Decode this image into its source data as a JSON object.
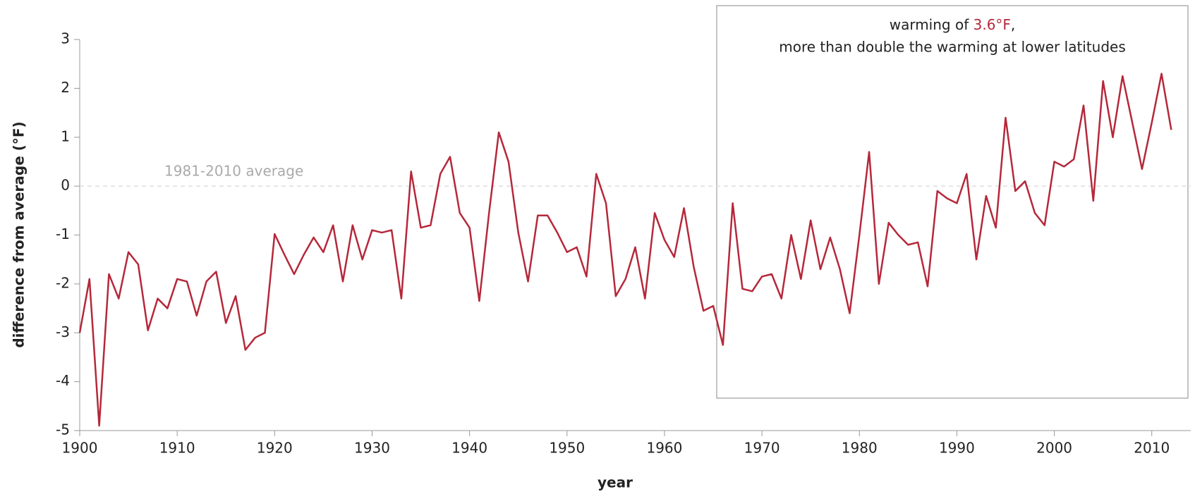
{
  "chart_data": {
    "type": "line",
    "x_label": "year",
    "y_label": "difference from average (°F)",
    "x": [
      1900,
      1901,
      1902,
      1903,
      1904,
      1905,
      1906,
      1907,
      1908,
      1909,
      1910,
      1911,
      1912,
      1913,
      1914,
      1915,
      1916,
      1917,
      1918,
      1919,
      1920,
      1921,
      1922,
      1923,
      1924,
      1925,
      1926,
      1927,
      1928,
      1929,
      1930,
      1931,
      1932,
      1933,
      1934,
      1935,
      1936,
      1937,
      1938,
      1939,
      1940,
      1941,
      1942,
      1943,
      1944,
      1945,
      1946,
      1947,
      1948,
      1949,
      1950,
      1951,
      1952,
      1953,
      1954,
      1955,
      1956,
      1957,
      1958,
      1959,
      1960,
      1961,
      1962,
      1963,
      1964,
      1965,
      1966,
      1967,
      1968,
      1969,
      1970,
      1971,
      1972,
      1973,
      1974,
      1975,
      1976,
      1977,
      1978,
      1979,
      1980,
      1981,
      1982,
      1983,
      1984,
      1985,
      1986,
      1987,
      1988,
      1989,
      1990,
      1991,
      1992,
      1993,
      1994,
      1995,
      1996,
      1997,
      1998,
      1999,
      2000,
      2001,
      2002,
      2003,
      2004,
      2005,
      2006,
      2007,
      2008,
      2009,
      2010,
      2011,
      2012
    ],
    "series": [
      {
        "color": "#b5283a",
        "values": [
          -3.0,
          -1.9,
          -4.9,
          -1.8,
          -2.3,
          -1.35,
          -1.6,
          -2.95,
          -2.3,
          -2.5,
          -1.9,
          -1.95,
          -2.65,
          -1.95,
          -1.75,
          -2.8,
          -2.25,
          -3.35,
          -3.1,
          -3.0,
          -0.98,
          -1.4,
          -1.8,
          -1.4,
          -1.05,
          -1.35,
          -0.8,
          -1.95,
          -0.8,
          -1.5,
          -0.9,
          -0.95,
          -0.9,
          -2.3,
          0.3,
          -0.85,
          -0.8,
          0.25,
          0.6,
          -0.55,
          -0.85,
          -2.35,
          -0.55,
          1.1,
          0.5,
          -0.95,
          -1.95,
          -0.6,
          -0.6,
          -0.95,
          -1.35,
          -1.25,
          -1.85,
          0.25,
          -0.35,
          -2.25,
          -1.9,
          -1.25,
          -2.3,
          -0.55,
          -1.1,
          -1.45,
          -0.45,
          -1.65,
          -2.55,
          -2.45,
          -3.25,
          -0.35,
          -2.1,
          -2.15,
          -1.85,
          -1.8,
          -2.3,
          -1.0,
          -1.9,
          -0.7,
          -1.7,
          -1.05,
          -1.7,
          -2.6,
          -1.0,
          0.7,
          -2.0,
          -0.75,
          -1.0,
          -1.2,
          -1.15,
          -2.05,
          -0.1,
          -0.25,
          -0.35,
          0.25,
          -1.5,
          -0.2,
          -0.85,
          1.4,
          -0.1,
          0.1,
          -0.55,
          -0.8,
          0.5,
          0.4,
          0.55,
          1.65,
          -0.3,
          2.15,
          1.0,
          2.25,
          1.3,
          0.35,
          1.3,
          2.3,
          1.15
        ]
      }
    ],
    "xlim": [
      1900,
      2014
    ],
    "xticks": [
      1900,
      1910,
      1920,
      1930,
      1940,
      1950,
      1960,
      1970,
      1980,
      1990,
      2000,
      2010
    ],
    "ylim": [
      -5,
      3
    ],
    "yticks": [
      -5,
      -4,
      -3,
      -2,
      -1,
      0,
      1,
      2,
      3
    ],
    "reference_line": {
      "value": 0,
      "label": "1981-2010 average"
    },
    "annotation": {
      "prefix": "warming of ",
      "highlight": "3.6°F",
      "suffix": ",",
      "line2": "more than double the warming at lower latitudes"
    }
  }
}
